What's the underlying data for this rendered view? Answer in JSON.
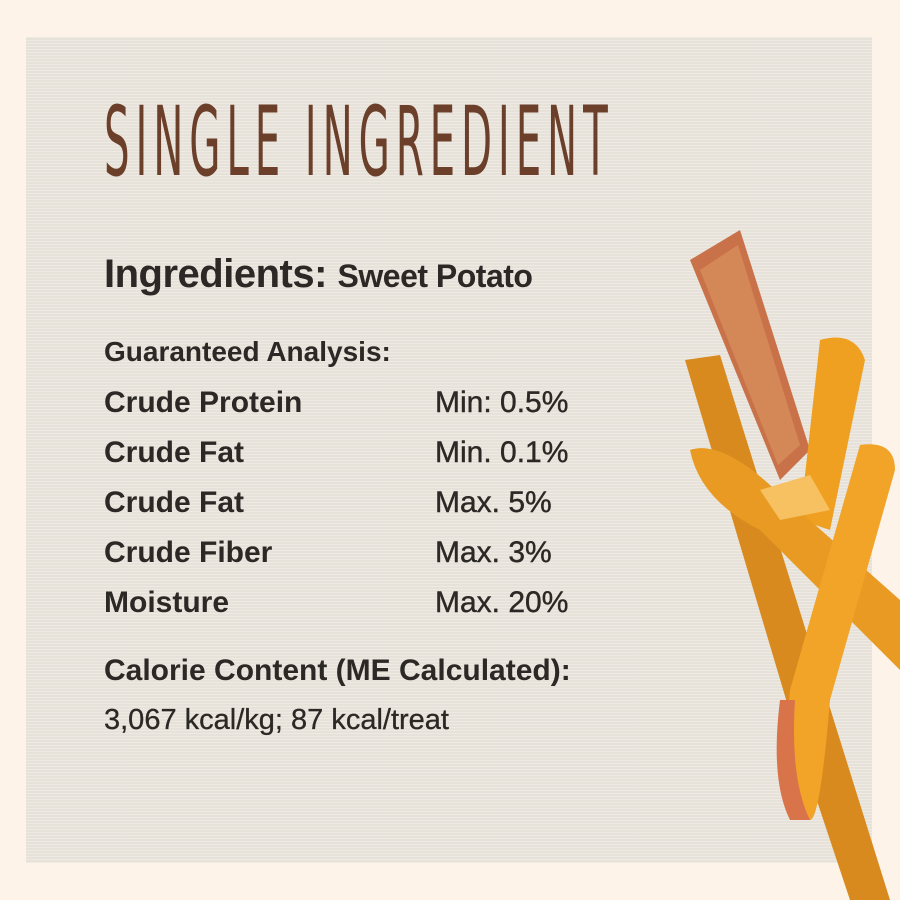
{
  "title": "SINGLE INGREDIENT",
  "ingredients": {
    "label": "Ingredients:",
    "value": "Sweet Potato"
  },
  "analysis": {
    "heading": "Guaranteed Analysis:",
    "rows": [
      {
        "name": "Crude Protein",
        "value": "Min: 0.5%"
      },
      {
        "name": "Crude Fat",
        "value": "Min. 0.1%"
      },
      {
        "name": "Crude Fat",
        "value": "Max. 5%"
      },
      {
        "name": "Crude Fiber",
        "value": "Max. 3%"
      },
      {
        "name": "Moisture",
        "value": "Max. 20%"
      }
    ]
  },
  "calories": {
    "heading": "Calorie Content (ME Calculated):",
    "value": "3,067 kcal/kg; 87 kcal/treat"
  },
  "colors": {
    "title": "#6b3f2a",
    "background": "#fdf3e8",
    "panel": "#ebe6dd",
    "text": "#2b2825"
  },
  "image": "sweet-potato-treats"
}
